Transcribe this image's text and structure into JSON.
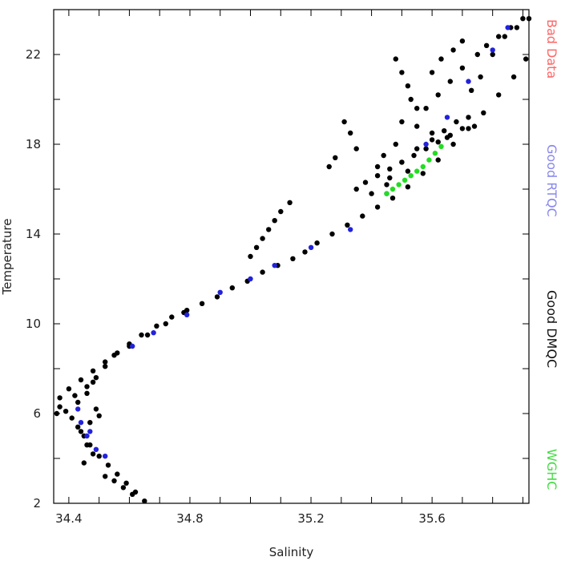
{
  "chart_data": {
    "type": "scatter",
    "title": "",
    "xlabel": "Salinity",
    "ylabel": "Temperature",
    "xlim": [
      34.35,
      35.92
    ],
    "ylim": [
      2,
      24
    ],
    "x_ticks": [
      34.4,
      34.8,
      35.2,
      35.6
    ],
    "x_tick_labels": [
      "34.4",
      "34.8",
      "35.2",
      "35.6"
    ],
    "y_ticks": [
      2,
      6,
      10,
      14,
      18,
      22
    ],
    "y_tick_labels": [
      "2",
      "6",
      "10",
      "14",
      "18",
      "22"
    ],
    "grid": false,
    "legend_position": "right-vertical",
    "legend": [
      {
        "label": "Bad Data",
        "color": "#ff6666"
      },
      {
        "label": "Good RTQC",
        "color": "#8888ee"
      },
      {
        "label": "Good DMQC",
        "color": "#111111"
      },
      {
        "label": "WGHC",
        "color": "#44dd44"
      }
    ],
    "series": [
      {
        "name": "Good DMQC",
        "color": "#000000",
        "x": [
          34.65,
          34.62,
          34.59,
          34.56,
          34.53,
          34.5,
          34.47,
          34.45,
          34.43,
          34.41,
          34.39,
          34.37,
          34.36,
          34.37,
          34.4,
          34.44,
          34.48,
          34.52,
          34.56,
          34.6,
          34.64,
          34.69,
          34.74,
          34.79,
          34.84,
          34.89,
          34.94,
          34.99,
          35.04,
          35.09,
          35.14,
          35.18,
          35.22,
          35.27,
          35.32,
          35.37,
          35.42,
          35.47,
          35.52,
          35.57,
          35.62,
          35.67,
          35.72,
          35.77,
          35.82,
          35.87,
          35.91,
          34.45,
          34.48,
          34.46,
          34.44,
          34.47,
          34.5,
          34.49,
          34.43,
          34.42,
          34.46,
          34.48,
          34.52,
          34.55,
          34.58,
          34.61,
          34.46,
          34.49,
          34.52,
          34.55,
          34.6,
          34.66,
          34.72,
          34.78,
          35.42,
          35.44,
          35.46,
          35.48,
          35.5,
          35.52,
          35.4,
          35.45,
          35.55,
          35.6,
          35.64,
          35.68,
          35.72,
          35.74,
          35.58,
          35.62,
          35.66,
          35.7,
          35.75,
          35.78,
          35.82,
          35.86,
          35.9,
          35.31,
          35.33,
          35.35,
          35.26,
          35.28,
          35.13,
          35.1,
          35.08,
          35.06,
          35.04,
          35.02,
          35.0,
          35.48,
          35.5,
          35.52,
          35.53,
          35.55,
          35.6,
          35.63,
          35.67,
          35.7,
          35.73,
          35.76,
          35.8,
          35.84,
          35.88,
          35.92,
          35.5,
          35.55,
          35.6,
          35.65,
          35.35,
          35.38,
          35.42,
          35.46,
          35.5,
          35.54,
          35.58,
          35.62,
          35.66,
          35.7
        ],
        "y": [
          2.1,
          2.5,
          2.9,
          3.3,
          3.7,
          4.1,
          4.6,
          5.0,
          5.4,
          5.8,
          6.1,
          6.3,
          6.0,
          6.7,
          7.1,
          7.5,
          7.9,
          8.3,
          8.7,
          9.1,
          9.5,
          9.9,
          10.3,
          10.6,
          10.9,
          11.2,
          11.6,
          11.9,
          12.3,
          12.6,
          12.9,
          13.2,
          13.6,
          14.0,
          14.4,
          14.8,
          15.2,
          15.6,
          16.1,
          16.7,
          17.3,
          18.0,
          18.7,
          19.4,
          20.2,
          21.0,
          21.8,
          3.8,
          4.2,
          4.6,
          5.2,
          5.6,
          5.9,
          6.2,
          6.5,
          6.8,
          7.2,
          7.4,
          3.2,
          3.0,
          2.7,
          2.4,
          6.9,
          7.6,
          8.1,
          8.6,
          9.0,
          9.5,
          10.0,
          10.5,
          17.0,
          17.5,
          16.5,
          18.0,
          17.2,
          16.8,
          15.8,
          16.2,
          17.8,
          18.2,
          18.6,
          19.0,
          19.2,
          18.8,
          19.6,
          20.2,
          20.8,
          21.4,
          22.0,
          22.4,
          22.8,
          23.2,
          23.6,
          19.0,
          18.5,
          17.8,
          17.0,
          17.4,
          15.4,
          15.0,
          14.6,
          14.2,
          13.8,
          13.4,
          13.0,
          21.8,
          21.2,
          20.6,
          20.0,
          19.6,
          21.2,
          21.8,
          22.2,
          22.6,
          20.4,
          21.0,
          22.0,
          22.8,
          23.2,
          23.6,
          19.0,
          18.8,
          18.5,
          18.3,
          16.0,
          16.3,
          16.6,
          16.9,
          17.2,
          17.5,
          17.8,
          18.1,
          18.4,
          18.7
        ]
      },
      {
        "name": "Good RTQC",
        "color": "#2222dd",
        "x": [
          34.43,
          34.46,
          34.49,
          34.52,
          34.61,
          34.68,
          34.79,
          34.9,
          35.0,
          35.08,
          35.2,
          35.33,
          35.45,
          35.58,
          35.65,
          35.72,
          35.8,
          35.85,
          34.44,
          34.47
        ],
        "y": [
          6.2,
          5.0,
          4.4,
          4.1,
          9.0,
          9.6,
          10.4,
          11.4,
          12.0,
          12.6,
          13.4,
          14.2,
          15.8,
          18.0,
          19.2,
          20.8,
          22.2,
          23.2,
          5.6,
          5.2
        ]
      },
      {
        "name": "WGHC",
        "color": "#22dd22",
        "x": [
          35.45,
          35.47,
          35.49,
          35.51,
          35.53,
          35.55,
          35.57,
          35.59,
          35.61,
          35.63
        ],
        "y": [
          15.8,
          16.0,
          16.2,
          16.4,
          16.6,
          16.8,
          17.0,
          17.3,
          17.6,
          17.9
        ]
      }
    ]
  }
}
